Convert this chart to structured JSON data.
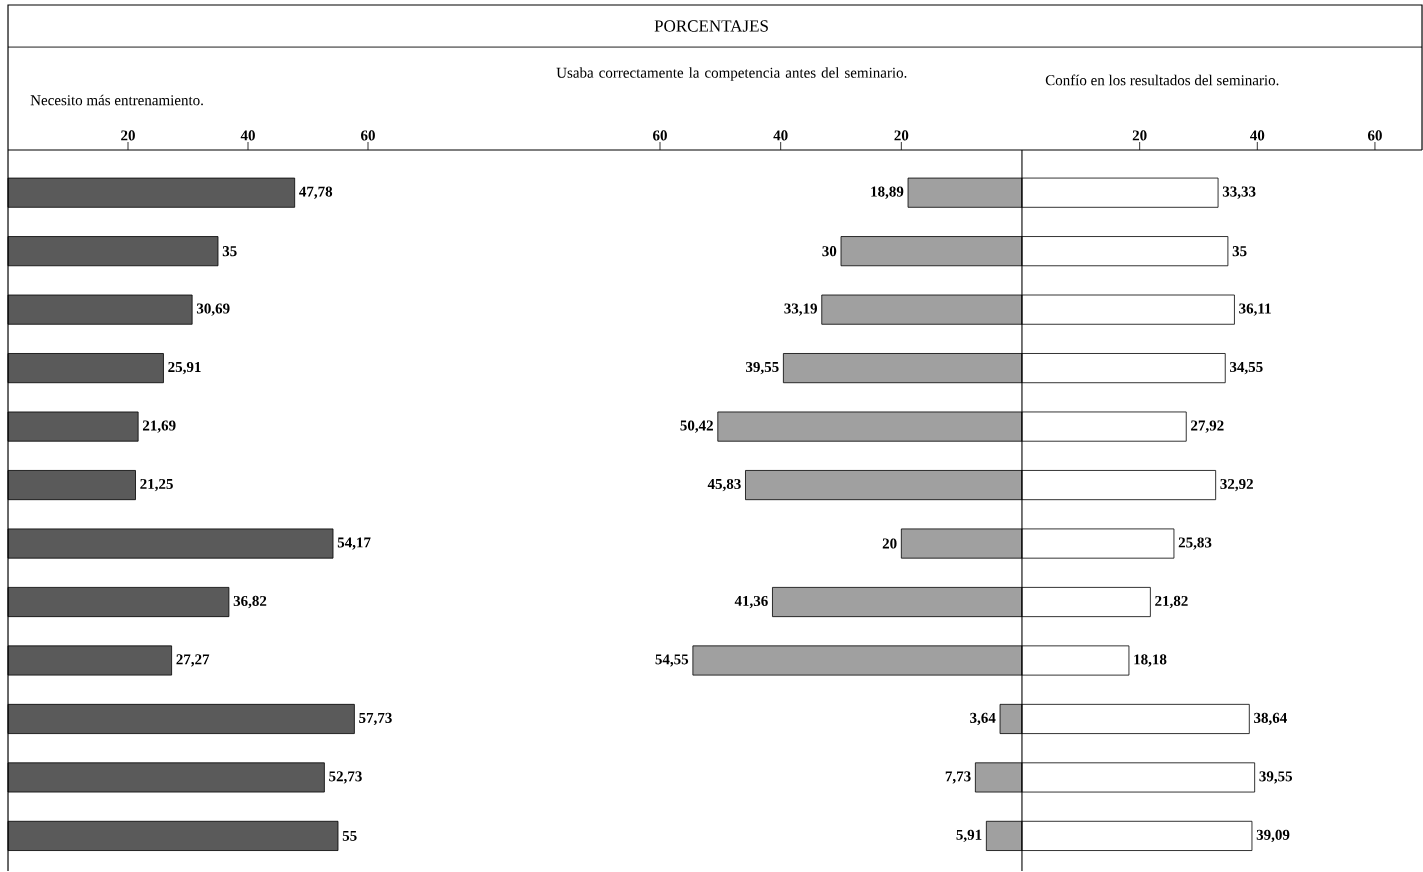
{
  "chart_data": [
    {
      "type": "bar",
      "orientation": "horizontal",
      "subtitle": "Necesito más entrenamiento.",
      "categories": [
        null,
        null,
        null,
        null,
        null,
        null,
        null,
        null,
        null,
        null,
        null,
        null
      ],
      "color": "#5a5a5a",
      "xlim": [
        0,
        60
      ],
      "xticks": [
        20,
        40,
        60
      ],
      "values": [
        47.78,
        35,
        30.69,
        25.91,
        21.69,
        21.25,
        54.17,
        36.82,
        27.27,
        57.73,
        52.73,
        55
      ],
      "value_labels": [
        "47,78",
        "35",
        "30,69",
        "25,91",
        "21,69",
        "21,25",
        "54,17",
        "36,82",
        "27,27",
        "57,73",
        "52,73",
        "55"
      ]
    },
    {
      "type": "bar",
      "orientation": "horizontal",
      "title": "PORCENTAJES",
      "subtitle": "Usaba correctamente la competencia antes del seminario.",
      "categories": [
        null,
        null,
        null,
        null,
        null,
        null,
        null,
        null,
        null,
        null,
        null,
        null
      ],
      "color": "#a0a0a0",
      "xlim": [
        60,
        0
      ],
      "xticks": [
        60,
        40,
        20
      ],
      "values": [
        18.89,
        30,
        33.19,
        39.55,
        50.42,
        45.83,
        20,
        41.36,
        54.55,
        3.64,
        7.73,
        5.91
      ],
      "value_labels": [
        "18,89",
        "30",
        "33,19",
        "39,55",
        "50,42",
        "45,83",
        "20",
        "41,36",
        "54,55",
        "3,64",
        "7,73",
        "5,91"
      ]
    },
    {
      "type": "bar",
      "orientation": "horizontal",
      "subtitle": "Confío en los resultados del seminario.",
      "categories": [
        null,
        null,
        null,
        null,
        null,
        null,
        null,
        null,
        null,
        null,
        null,
        null
      ],
      "color": "#ffffff",
      "xlim": [
        0,
        68
      ],
      "xticks": [
        20,
        40,
        60
      ],
      "values": [
        33.33,
        35,
        36.11,
        34.55,
        27.92,
        32.92,
        25.83,
        21.82,
        18.18,
        38.64,
        39.55,
        39.09
      ],
      "value_labels": [
        "33,33",
        "35",
        "36,11",
        "34,55",
        "27,92",
        "32,92",
        "25,83",
        "21,82",
        "18,18",
        "38,64",
        "39,55",
        "39,09"
      ]
    }
  ]
}
